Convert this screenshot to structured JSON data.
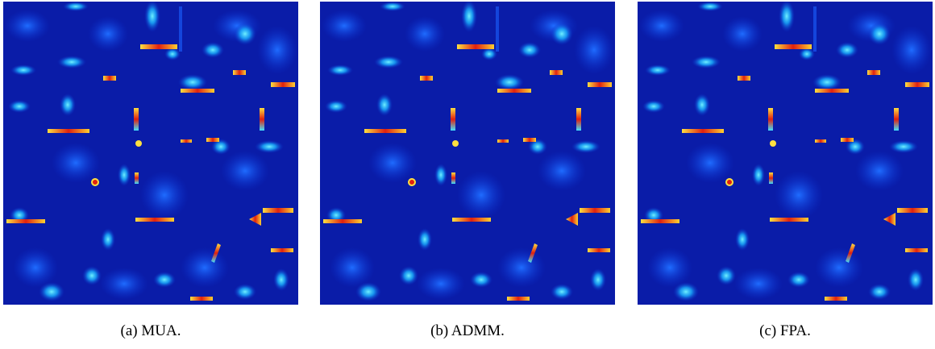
{
  "figures": [
    {
      "caption": "(a) MUA."
    },
    {
      "caption": "(b) ADMM."
    },
    {
      "caption": "(c) FPA."
    }
  ]
}
